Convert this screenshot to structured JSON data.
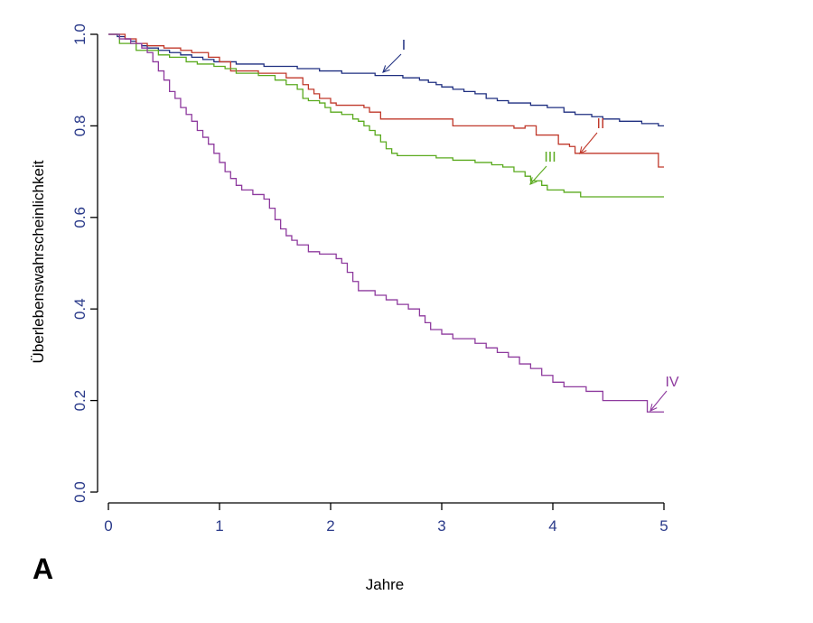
{
  "panel_label": "A",
  "chart_data": {
    "type": "line",
    "step": true,
    "title": "",
    "xlabel": "Jahre",
    "ylabel": "Überlebenswahrscheinlichkeit",
    "xlim": [
      0,
      5
    ],
    "ylim": [
      0,
      1
    ],
    "x_ticks": [
      "0",
      "1",
      "2",
      "3",
      "4",
      "5"
    ],
    "y_ticks": [
      "0.0",
      "0.2",
      "0.4",
      "0.6",
      "0.8",
      "1.0"
    ],
    "grid": false,
    "series": [
      {
        "name": "I",
        "color": "#1f2f80",
        "points": [
          [
            0,
            1.0
          ],
          [
            0.08,
            0.995
          ],
          [
            0.15,
            0.99
          ],
          [
            0.2,
            0.985
          ],
          [
            0.25,
            0.98
          ],
          [
            0.3,
            0.975
          ],
          [
            0.35,
            0.97
          ],
          [
            0.45,
            0.965
          ],
          [
            0.55,
            0.96
          ],
          [
            0.65,
            0.955
          ],
          [
            0.75,
            0.95
          ],
          [
            0.85,
            0.945
          ],
          [
            0.95,
            0.94
          ],
          [
            1.15,
            0.935
          ],
          [
            1.4,
            0.93
          ],
          [
            1.7,
            0.925
          ],
          [
            1.9,
            0.92
          ],
          [
            2.1,
            0.915
          ],
          [
            2.4,
            0.91
          ],
          [
            2.65,
            0.905
          ],
          [
            2.8,
            0.9
          ],
          [
            2.88,
            0.895
          ],
          [
            2.95,
            0.89
          ],
          [
            3.0,
            0.885
          ],
          [
            3.1,
            0.88
          ],
          [
            3.2,
            0.875
          ],
          [
            3.3,
            0.87
          ],
          [
            3.4,
            0.86
          ],
          [
            3.5,
            0.855
          ],
          [
            3.6,
            0.85
          ],
          [
            3.8,
            0.845
          ],
          [
            3.95,
            0.84
          ],
          [
            4.1,
            0.83
          ],
          [
            4.2,
            0.825
          ],
          [
            4.35,
            0.82
          ],
          [
            4.45,
            0.815
          ],
          [
            4.6,
            0.81
          ],
          [
            4.8,
            0.805
          ],
          [
            4.95,
            0.8
          ],
          [
            5.0,
            0.8
          ]
        ]
      },
      {
        "name": "II",
        "color": "#c0392b",
        "points": [
          [
            0,
            1.0
          ],
          [
            0.15,
            0.99
          ],
          [
            0.25,
            0.98
          ],
          [
            0.35,
            0.975
          ],
          [
            0.5,
            0.97
          ],
          [
            0.65,
            0.965
          ],
          [
            0.75,
            0.96
          ],
          [
            0.9,
            0.95
          ],
          [
            1.0,
            0.94
          ],
          [
            1.1,
            0.92
          ],
          [
            1.35,
            0.915
          ],
          [
            1.6,
            0.905
          ],
          [
            1.75,
            0.89
          ],
          [
            1.8,
            0.88
          ],
          [
            1.85,
            0.87
          ],
          [
            1.9,
            0.86
          ],
          [
            2.0,
            0.85
          ],
          [
            2.05,
            0.845
          ],
          [
            2.3,
            0.84
          ],
          [
            2.35,
            0.83
          ],
          [
            2.45,
            0.815
          ],
          [
            2.65,
            0.815
          ],
          [
            2.9,
            0.815
          ],
          [
            3.1,
            0.8
          ],
          [
            3.65,
            0.795
          ],
          [
            3.75,
            0.8
          ],
          [
            3.85,
            0.78
          ],
          [
            4.05,
            0.76
          ],
          [
            4.15,
            0.755
          ],
          [
            4.2,
            0.74
          ],
          [
            4.75,
            0.74
          ],
          [
            4.95,
            0.71
          ],
          [
            5.0,
            0.71
          ]
        ]
      },
      {
        "name": "III",
        "color": "#5aaa1e",
        "points": [
          [
            0,
            1.0
          ],
          [
            0.1,
            0.98
          ],
          [
            0.25,
            0.965
          ],
          [
            0.45,
            0.955
          ],
          [
            0.55,
            0.95
          ],
          [
            0.7,
            0.94
          ],
          [
            0.8,
            0.935
          ],
          [
            0.95,
            0.93
          ],
          [
            1.05,
            0.925
          ],
          [
            1.15,
            0.915
          ],
          [
            1.35,
            0.91
          ],
          [
            1.5,
            0.9
          ],
          [
            1.6,
            0.89
          ],
          [
            1.7,
            0.88
          ],
          [
            1.75,
            0.86
          ],
          [
            1.8,
            0.855
          ],
          [
            1.9,
            0.85
          ],
          [
            1.95,
            0.84
          ],
          [
            2.0,
            0.83
          ],
          [
            2.1,
            0.825
          ],
          [
            2.2,
            0.815
          ],
          [
            2.25,
            0.81
          ],
          [
            2.3,
            0.8
          ],
          [
            2.35,
            0.79
          ],
          [
            2.4,
            0.78
          ],
          [
            2.45,
            0.765
          ],
          [
            2.5,
            0.75
          ],
          [
            2.55,
            0.74
          ],
          [
            2.6,
            0.735
          ],
          [
            2.75,
            0.735
          ],
          [
            2.95,
            0.73
          ],
          [
            3.1,
            0.725
          ],
          [
            3.3,
            0.72
          ],
          [
            3.45,
            0.715
          ],
          [
            3.55,
            0.71
          ],
          [
            3.65,
            0.7
          ],
          [
            3.75,
            0.69
          ],
          [
            3.8,
            0.68
          ],
          [
            3.9,
            0.67
          ],
          [
            3.95,
            0.66
          ],
          [
            4.1,
            0.655
          ],
          [
            4.25,
            0.645
          ],
          [
            4.5,
            0.645
          ],
          [
            5.0,
            0.645
          ]
        ]
      },
      {
        "name": "IV",
        "color": "#8e3a9e",
        "points": [
          [
            0,
            1.0
          ],
          [
            0.1,
            0.99
          ],
          [
            0.2,
            0.98
          ],
          [
            0.3,
            0.97
          ],
          [
            0.35,
            0.96
          ],
          [
            0.4,
            0.94
          ],
          [
            0.45,
            0.92
          ],
          [
            0.5,
            0.9
          ],
          [
            0.55,
            0.875
          ],
          [
            0.6,
            0.86
          ],
          [
            0.65,
            0.84
          ],
          [
            0.7,
            0.825
          ],
          [
            0.75,
            0.81
          ],
          [
            0.8,
            0.79
          ],
          [
            0.85,
            0.775
          ],
          [
            0.9,
            0.76
          ],
          [
            0.95,
            0.74
          ],
          [
            1.0,
            0.72
          ],
          [
            1.05,
            0.7
          ],
          [
            1.1,
            0.685
          ],
          [
            1.15,
            0.67
          ],
          [
            1.2,
            0.66
          ],
          [
            1.3,
            0.65
          ],
          [
            1.4,
            0.64
          ],
          [
            1.45,
            0.62
          ],
          [
            1.5,
            0.595
          ],
          [
            1.55,
            0.575
          ],
          [
            1.6,
            0.56
          ],
          [
            1.65,
            0.55
          ],
          [
            1.7,
            0.54
          ],
          [
            1.8,
            0.525
          ],
          [
            1.9,
            0.52
          ],
          [
            2.05,
            0.51
          ],
          [
            2.1,
            0.5
          ],
          [
            2.15,
            0.48
          ],
          [
            2.2,
            0.46
          ],
          [
            2.25,
            0.44
          ],
          [
            2.4,
            0.43
          ],
          [
            2.5,
            0.42
          ],
          [
            2.6,
            0.41
          ],
          [
            2.7,
            0.4
          ],
          [
            2.8,
            0.385
          ],
          [
            2.85,
            0.37
          ],
          [
            2.9,
            0.355
          ],
          [
            3.0,
            0.345
          ],
          [
            3.1,
            0.335
          ],
          [
            3.3,
            0.325
          ],
          [
            3.4,
            0.315
          ],
          [
            3.5,
            0.305
          ],
          [
            3.6,
            0.295
          ],
          [
            3.7,
            0.28
          ],
          [
            3.8,
            0.27
          ],
          [
            3.9,
            0.255
          ],
          [
            4.0,
            0.24
          ],
          [
            4.1,
            0.23
          ],
          [
            4.3,
            0.22
          ],
          [
            4.45,
            0.2
          ],
          [
            4.8,
            0.2
          ],
          [
            4.85,
            0.175
          ],
          [
            5.0,
            0.175
          ]
        ]
      }
    ]
  }
}
